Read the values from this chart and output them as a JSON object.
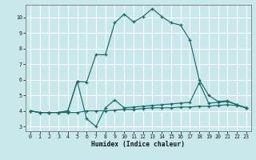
{
  "xlabel": "Humidex (Indice chaleur)",
  "bg_color": "#c8e8ec",
  "grid_color": "#ffffff",
  "line_color": "#1a6b6b",
  "xlim_min": -0.5,
  "xlim_max": 23.5,
  "ylim_min": 2.7,
  "ylim_max": 10.8,
  "xticks": [
    0,
    1,
    2,
    3,
    4,
    5,
    6,
    7,
    8,
    9,
    10,
    11,
    12,
    13,
    14,
    15,
    16,
    17,
    18,
    19,
    20,
    21,
    22,
    23
  ],
  "yticks": [
    3,
    4,
    5,
    6,
    7,
    8,
    9,
    10
  ],
  "line1_x": [
    0,
    1,
    2,
    3,
    4,
    5,
    6,
    7,
    8,
    9,
    10,
    11,
    12,
    13,
    14,
    15,
    16,
    17,
    18,
    19,
    20,
    21,
    22,
    23
  ],
  "line1_y": [
    4.0,
    3.9,
    3.9,
    3.9,
    3.9,
    3.9,
    4.0,
    4.0,
    4.0,
    4.05,
    4.1,
    4.1,
    4.15,
    4.2,
    4.2,
    4.2,
    4.25,
    4.25,
    4.3,
    4.3,
    4.35,
    4.4,
    4.35,
    4.2
  ],
  "line2_x": [
    0,
    1,
    2,
    3,
    4,
    5,
    6,
    7,
    8,
    9,
    10,
    11,
    12,
    13,
    14,
    15,
    16,
    17,
    18,
    19,
    20,
    21,
    22,
    23
  ],
  "line2_y": [
    4.0,
    3.9,
    3.9,
    3.9,
    4.0,
    5.9,
    3.5,
    3.0,
    4.2,
    4.7,
    4.2,
    4.25,
    4.3,
    4.35,
    4.4,
    4.45,
    4.5,
    4.55,
    5.8,
    4.5,
    4.55,
    4.6,
    4.4,
    4.2
  ],
  "line3_x": [
    0,
    1,
    2,
    3,
    4,
    5,
    6,
    7,
    8,
    9,
    10,
    11,
    12,
    13,
    14,
    15,
    16,
    17,
    18,
    19,
    20,
    21,
    22,
    23
  ],
  "line3_y": [
    4.0,
    3.9,
    3.9,
    3.9,
    4.0,
    5.9,
    5.85,
    7.6,
    7.6,
    9.65,
    10.2,
    9.7,
    10.05,
    10.55,
    10.05,
    9.65,
    9.5,
    8.55,
    6.0,
    5.0,
    4.6,
    4.65,
    4.4,
    4.2
  ]
}
